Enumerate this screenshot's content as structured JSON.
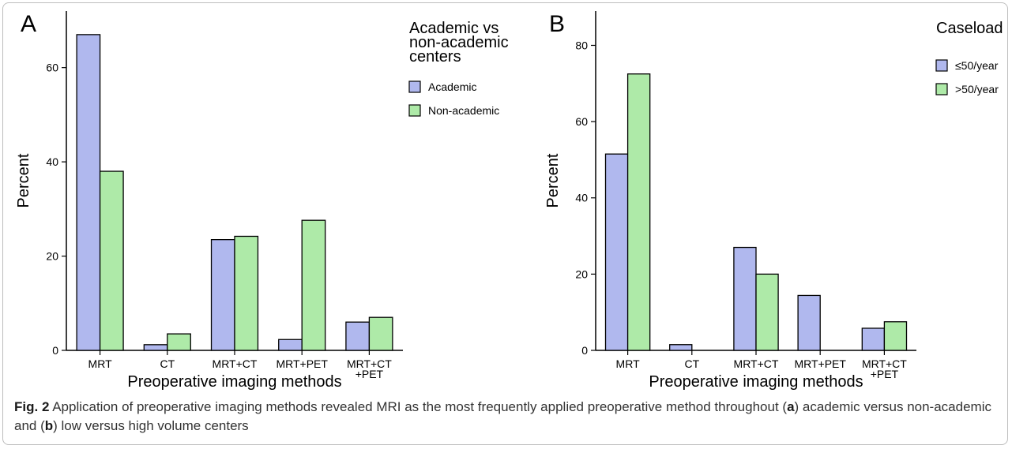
{
  "chart_data": [
    {
      "type": "bar",
      "panel_label": "A",
      "categories": [
        "MRT",
        "CT",
        "MRT+CT",
        "MRT+PET",
        "MRT+CT +PET"
      ],
      "category_lines": [
        [
          "MRT"
        ],
        [
          "CT"
        ],
        [
          "MRT+CT"
        ],
        [
          "MRT+PET"
        ],
        [
          "MRT+CT",
          "+PET"
        ]
      ],
      "series": [
        {
          "name": "Academic",
          "color": "#b0b8ee",
          "values": [
            67.0,
            1.2,
            23.5,
            2.3,
            6.0
          ]
        },
        {
          "name": "Non-academic",
          "color": "#aeeaa8",
          "values": [
            38.0,
            3.5,
            24.2,
            27.6,
            7.0
          ]
        }
      ],
      "legend_title": "Academic vs non-academic centers",
      "legend_title_lines": [
        "Academic vs",
        "non-academic",
        "centers"
      ],
      "xlabel": "Preoperative imaging methods",
      "ylabel": "Percent",
      "ylim": [
        0,
        72
      ],
      "yticks": [
        0,
        20,
        40,
        60
      ],
      "grid": false,
      "legend_position": "right"
    },
    {
      "type": "bar",
      "panel_label": "B",
      "categories": [
        "MRT",
        "CT",
        "MRT+CT",
        "MRT+PET",
        "MRT+CT +PET"
      ],
      "category_lines": [
        [
          "MRT"
        ],
        [
          "CT"
        ],
        [
          "MRT+CT"
        ],
        [
          "MRT+PET"
        ],
        [
          "MRT+CT",
          "+PET"
        ]
      ],
      "series": [
        {
          "name": "≤50/year",
          "color": "#b0b8ee",
          "values": [
            51.5,
            1.5,
            27.0,
            14.4,
            5.8
          ]
        },
        {
          "name": ">50/year",
          "color": "#aeeaa8",
          "values": [
            72.5,
            0,
            20.0,
            0,
            7.5
          ]
        }
      ],
      "legend_title": "Caseload",
      "legend_title_lines": [
        "Caseload"
      ],
      "xlabel": "Preoperative imaging methods",
      "ylabel": "Percent",
      "ylim": [
        0,
        89
      ],
      "yticks": [
        0,
        20,
        40,
        60,
        80
      ],
      "grid": false,
      "legend_position": "right"
    }
  ],
  "caption": {
    "label": "Fig. 2",
    "text_1": " Application of preoperative imaging methods revealed MRI as the most frequently applied preoperative method throughout (",
    "bold_a": "a",
    "text_2": ") academic versus non-academic and (",
    "bold_b": "b",
    "text_3": ") low versus high volume centers"
  }
}
